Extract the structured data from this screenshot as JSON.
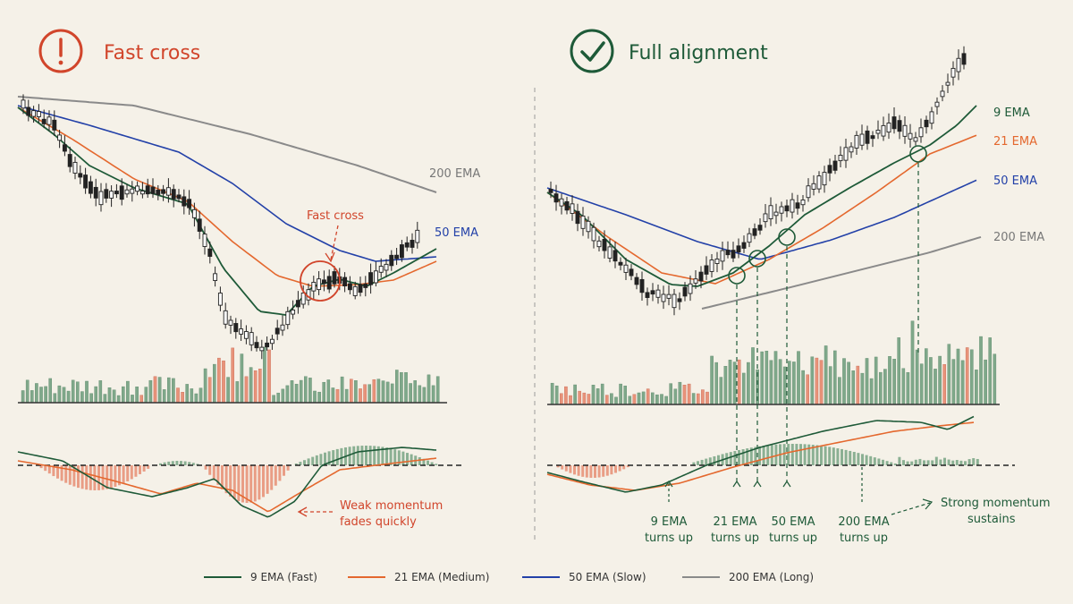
{
  "colors": {
    "background": "#f5f1e8",
    "ema9": "#1e5a38",
    "ema21": "#e4682e",
    "ema50": "#2341a8",
    "ema200": "#8a8a8a",
    "warning": "#d1452b",
    "success": "#1e5a38",
    "candle": "#222222",
    "volume_up": "#7fa88a",
    "volume_down": "#e8937a"
  },
  "left_panel": {
    "title": "Fast cross",
    "icon": "exclamation-circle-icon",
    "labels": {
      "ema200": "200 EMA",
      "ema50": "50 EMA"
    },
    "cross_annotation": "Fast cross",
    "momentum_note": [
      "Weak momentum",
      "fades quickly"
    ]
  },
  "right_panel": {
    "title": "Full alignment",
    "icon": "checkmark-circle-icon",
    "labels": {
      "ema9": "9 EMA",
      "ema21": "21 EMA",
      "ema50": "50 EMA",
      "ema200": "200 EMA"
    },
    "turn_labels": [
      [
        "9 EMA",
        "turns up"
      ],
      [
        "21 EMA",
        "turns up"
      ],
      [
        "50 EMA",
        "turns up"
      ],
      [
        "200 EMA",
        "turns up"
      ]
    ],
    "momentum_note": [
      "Strong momentum",
      "sustains"
    ]
  },
  "legend": [
    {
      "label": "9 EMA (Fast)",
      "color": "#1e5a38"
    },
    {
      "label": "21 EMA (Medium)",
      "color": "#e4682e"
    },
    {
      "label": "50 EMA (Slow)",
      "color": "#2341a8"
    },
    {
      "label": "200 EMA (Long)",
      "color": "#8a8a8a"
    }
  ],
  "chart_data": [
    {
      "type": "line",
      "title": "Fast cross",
      "xlabel": "",
      "ylabel": "",
      "grid": false,
      "series": [
        {
          "name": "200 EMA",
          "color": "#8a8a8a"
        },
        {
          "name": "50 EMA",
          "color": "#2341a8"
        }
      ]
    },
    {
      "type": "line",
      "title": "Full alignment",
      "xlabel": "",
      "ylabel": "",
      "grid": false,
      "series": [
        {
          "name": "9 EMA",
          "color": "#1e5a38"
        },
        {
          "name": "21 EMA",
          "color": "#e4682e"
        },
        {
          "name": "50 EMA",
          "color": "#2341a8"
        },
        {
          "name": "200 EMA",
          "color": "#8a8a8a"
        }
      ]
    }
  ]
}
